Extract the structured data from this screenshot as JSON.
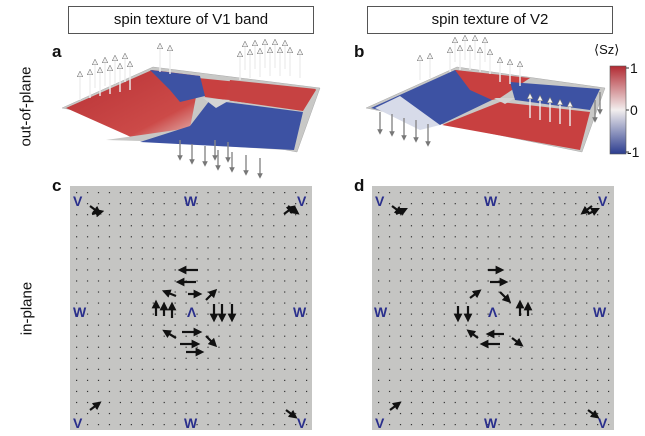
{
  "titles": {
    "left": "spin texture of V1 band",
    "right": "spin texture of V2"
  },
  "panels": {
    "a": "a",
    "b": "b",
    "c": "c",
    "d": "d"
  },
  "row_labels": {
    "top": "out-of-plane",
    "bottom": "in-plane"
  },
  "colorbar": {
    "title": "⟨Sz⟩",
    "ticks": [
      "1",
      "0",
      "-1"
    ],
    "colors": {
      "max": "#b22a32",
      "mid": "#f2eeee",
      "min": "#2c3d8f"
    }
  },
  "points": {
    "corner": "V",
    "edge": "W",
    "center": "Λ"
  },
  "colors": {
    "plane_gray": "#c5c5c3",
    "red": "#c53a3a",
    "blue": "#3f56a8",
    "label": "#2a2f8c"
  }
}
